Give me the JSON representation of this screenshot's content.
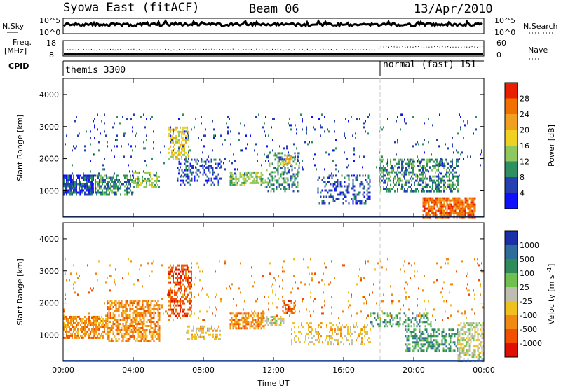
{
  "header": {
    "station": "Syowa East (fitACF)",
    "beam": "Beam 06",
    "date": "13/Apr/2010"
  },
  "top_panels": {
    "nsky_label": "N.Sky",
    "nsearch_label": "N.Search",
    "nsky_ticks": [
      "10^5",
      "10^0"
    ],
    "nsearch_ticks": [
      "10^5",
      "10^0"
    ],
    "freq_label_1": "Freq.",
    "freq_label_2": "[MHz]",
    "freq_ticks": [
      "18",
      "8"
    ],
    "nave_ticks": [
      "60",
      "0"
    ],
    "nave_label": "Nave",
    "cpid_label": "CPID",
    "cpid_segments": [
      {
        "label": "themis 3300",
        "start_hour": 0
      },
      {
        "label": "normal (fast) 151",
        "start_hour": 18
      }
    ]
  },
  "chart_data": [
    {
      "type": "heatmap",
      "name": "power",
      "ylabel": "Slant Range [km]",
      "xlabel": "Time UT",
      "xticks": [
        "00:00",
        "04:00",
        "08:00",
        "12:00",
        "16:00",
        "20:00",
        "00:00"
      ],
      "xlim_hours": [
        0,
        24
      ],
      "ylim": [
        180,
        4500
      ],
      "yticks": [
        1000,
        2000,
        3000,
        4000
      ],
      "colorbar": {
        "label": "Power [dB]",
        "ticks": [
          "4",
          "8",
          "12",
          "16",
          "20",
          "24",
          "28"
        ],
        "colors": [
          "#1010ff",
          "#2540b0",
          "#2e9060",
          "#90c860",
          "#f0d020",
          "#f0a020",
          "#f07000",
          "#e82000"
        ]
      },
      "blobs": [
        {
          "t0": 0.0,
          "t1": 1.7,
          "r0": 900,
          "r1": 1500,
          "level": 1,
          "d": 0.8
        },
        {
          "t0": 1.8,
          "t1": 4.0,
          "r0": 900,
          "r1": 1500,
          "level": 2,
          "d": 0.6
        },
        {
          "t0": 4.0,
          "t1": 5.5,
          "r0": 1100,
          "r1": 1600,
          "level": 3,
          "d": 0.5
        },
        {
          "t0": 6.0,
          "t1": 7.2,
          "r0": 2000,
          "r1": 3000,
          "level": 4,
          "d": 0.5
        },
        {
          "t0": 6.5,
          "t1": 9.0,
          "r0": 1200,
          "r1": 2000,
          "level": 1,
          "d": 0.3
        },
        {
          "t0": 9.5,
          "t1": 11.5,
          "r0": 1200,
          "r1": 1600,
          "level": 3,
          "d": 0.6
        },
        {
          "t0": 11.5,
          "t1": 13.5,
          "r0": 1000,
          "r1": 2200,
          "level": 2,
          "d": 0.4
        },
        {
          "t0": 12.5,
          "t1": 13.0,
          "r0": 1800,
          "r1": 2100,
          "level": 5,
          "d": 0.5
        },
        {
          "t0": 14.5,
          "t1": 17.5,
          "r0": 600,
          "r1": 1500,
          "level": 1,
          "d": 0.3
        },
        {
          "t0": 18.0,
          "t1": 22.5,
          "r0": 1000,
          "r1": 2000,
          "level": 2,
          "d": 0.5
        },
        {
          "t0": 20.5,
          "t1": 23.5,
          "r0": 200,
          "r1": 800,
          "level": 6,
          "d": 0.8
        },
        {
          "t0": 0.0,
          "t1": 24.0,
          "r0": 1500,
          "r1": 3400,
          "level": 1,
          "d": 0.04
        }
      ]
    },
    {
      "type": "heatmap",
      "name": "velocity",
      "ylabel": "Slant Range [km]",
      "xlabel": "Time UT",
      "xticks": [
        "00:00",
        "04:00",
        "08:00",
        "12:00",
        "16:00",
        "20:00",
        "00:00"
      ],
      "xlim_hours": [
        0,
        24
      ],
      "ylim": [
        180,
        4500
      ],
      "yticks": [
        1000,
        2000,
        3000,
        4000
      ],
      "colorbar": {
        "label": "Velocity [m s^-1]",
        "ticks": [
          "1000",
          "500",
          "100",
          "25",
          "-25",
          "-100",
          "-500",
          "-1000"
        ],
        "colors": [
          "#1a2fa8",
          "#2e6d9a",
          "#2e8c5a",
          "#70c050",
          "#bdbdb0",
          "#f0c020",
          "#f08a10",
          "#f05000",
          "#e01000"
        ]
      },
      "blobs": [
        {
          "t0": 0.0,
          "t1": 2.5,
          "r0": 900,
          "r1": 1600,
          "level": 6,
          "d": 0.7
        },
        {
          "t0": 2.5,
          "t1": 5.5,
          "r0": 800,
          "r1": 2100,
          "level": 6,
          "d": 0.6
        },
        {
          "t0": 6.0,
          "t1": 7.3,
          "r0": 1600,
          "r1": 3200,
          "level": 7,
          "d": 0.5
        },
        {
          "t0": 7.0,
          "t1": 9.0,
          "r0": 900,
          "r1": 1300,
          "level": 5,
          "d": 0.4
        },
        {
          "t0": 9.5,
          "t1": 11.5,
          "r0": 1200,
          "r1": 1700,
          "level": 6,
          "d": 0.6
        },
        {
          "t0": 11.5,
          "t1": 12.6,
          "r0": 1300,
          "r1": 1600,
          "level": 4,
          "d": 0.6
        },
        {
          "t0": 12.5,
          "t1": 13.2,
          "r0": 1700,
          "r1": 2100,
          "level": 7,
          "d": 0.6
        },
        {
          "t0": 13.0,
          "t1": 17.5,
          "r0": 700,
          "r1": 1400,
          "level": 5,
          "d": 0.3
        },
        {
          "t0": 17.5,
          "t1": 21.0,
          "r0": 1300,
          "r1": 1700,
          "level": 2,
          "d": 0.4
        },
        {
          "t0": 19.5,
          "t1": 22.5,
          "r0": 500,
          "r1": 1200,
          "level": 2,
          "d": 0.5
        },
        {
          "t0": 22.5,
          "t1": 24.0,
          "r0": 200,
          "r1": 1400,
          "level": 4,
          "d": 0.5
        },
        {
          "t0": 0.0,
          "t1": 24.0,
          "r0": 1500,
          "r1": 3400,
          "level": 6,
          "d": 0.04
        }
      ]
    }
  ]
}
